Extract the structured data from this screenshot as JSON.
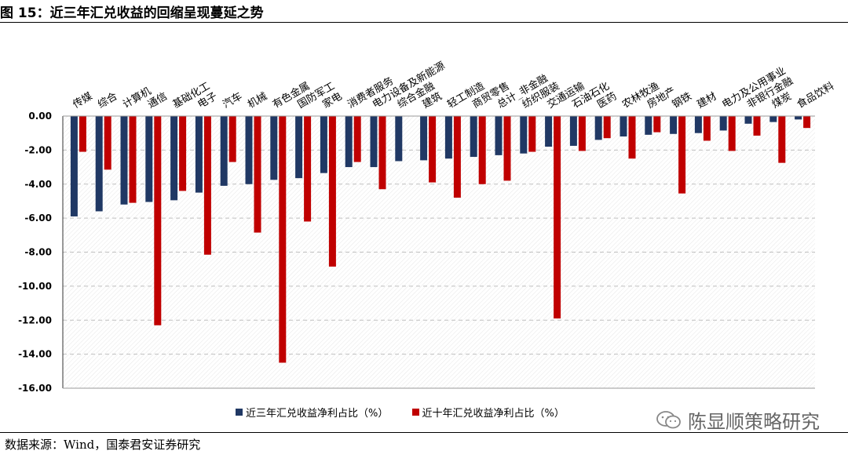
{
  "figure_title": "图 15：近三年汇兑收益的回缩呈现蔓延之势",
  "source_note": "数据来源：Wind，国泰君安证券研究",
  "watermark_text": "陈显顺策略研究",
  "colors": {
    "series1": "#203864",
    "series2": "#c00000",
    "grid": "#bfbfbf"
  },
  "chart_data": {
    "type": "bar",
    "ylim": [
      -16,
      0
    ],
    "yticks": [
      "0.00",
      "-2.00",
      "-4.00",
      "-6.00",
      "-8.00",
      "-10.00",
      "-12.00",
      "-14.00",
      "-16.00"
    ],
    "grid": true,
    "legend_position": "bottom",
    "categories": [
      "传媒",
      "综合",
      "计算机",
      "通信",
      "基础化工",
      "电子",
      "汽车",
      "机械",
      "有色金属",
      "国防军工",
      "家电",
      "消费者服务",
      "电力设备及新能源",
      "综合金融",
      "建筑",
      "轻工制造",
      "商贸零售",
      "总计_非金融",
      "纺织服装",
      "交通运输",
      "石油石化",
      "医药",
      "农林牧渔",
      "房地产",
      "钢铁",
      "建材",
      "电力及公用事业",
      "非银行金融",
      "煤炭",
      "食品饮料"
    ],
    "series": [
      {
        "name": "近三年汇兑收益净利占比（%）",
        "values": [
          -5.9,
          -5.6,
          -5.2,
          -5.05,
          -4.95,
          -4.5,
          -4.1,
          -4.0,
          -3.75,
          -3.65,
          -3.35,
          -3.0,
          -3.0,
          -2.65,
          -2.6,
          -2.5,
          -2.4,
          -2.3,
          -2.2,
          -1.8,
          -1.75,
          -1.4,
          -1.2,
          -1.1,
          -1.05,
          -1.0,
          -0.85,
          -0.45,
          -0.35,
          -0.2
        ]
      },
      {
        "name": "近十年汇兑收益净利占比（%）",
        "values": [
          -2.1,
          -3.15,
          -5.1,
          -12.3,
          -4.4,
          -8.15,
          -2.7,
          -6.85,
          -14.5,
          -6.2,
          -8.85,
          -2.7,
          -4.3,
          0,
          -3.9,
          -4.8,
          -4.0,
          -3.8,
          -2.1,
          -11.9,
          -2.05,
          -1.3,
          -2.5,
          -0.95,
          -4.55,
          -1.45,
          -2.05,
          -1.15,
          -2.75,
          -0.7
        ]
      }
    ]
  }
}
